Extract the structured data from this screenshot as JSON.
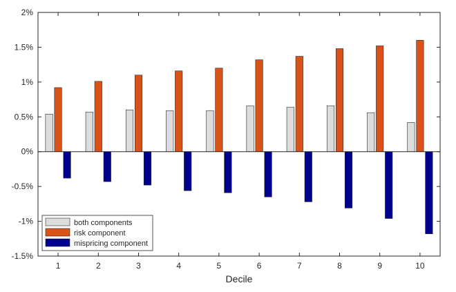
{
  "chart_data": {
    "type": "bar",
    "xlabel": "Decile",
    "ylabel": "",
    "categories": [
      "1",
      "2",
      "3",
      "4",
      "5",
      "6",
      "7",
      "8",
      "9",
      "10"
    ],
    "ylim": [
      -1.5,
      2
    ],
    "yticks": [
      {
        "value": 2,
        "label": "2%"
      },
      {
        "value": 1.5,
        "label": "1.5%"
      },
      {
        "value": 1,
        "label": "1%"
      },
      {
        "value": 0.5,
        "label": "0.5%"
      },
      {
        "value": 0,
        "label": "0%"
      },
      {
        "value": -0.5,
        "label": "-0.5%"
      },
      {
        "value": -1,
        "label": "-1%"
      },
      {
        "value": -1.5,
        "label": "-1.5%"
      }
    ],
    "grid": false,
    "legend_position": "bottom-left",
    "series": [
      {
        "name": "both components",
        "color": "#dcdcdc",
        "values": [
          0.54,
          0.57,
          0.6,
          0.59,
          0.59,
          0.66,
          0.64,
          0.66,
          0.56,
          0.42
        ]
      },
      {
        "name": "risk component",
        "color": "#d95319",
        "values": [
          0.92,
          1.01,
          1.1,
          1.16,
          1.2,
          1.32,
          1.37,
          1.48,
          1.52,
          1.6
        ]
      },
      {
        "name": "mispricing component",
        "color": "#00008f",
        "values": [
          -0.38,
          -0.43,
          -0.48,
          -0.56,
          -0.59,
          -0.65,
          -0.72,
          -0.81,
          -0.96,
          -1.18
        ]
      }
    ]
  }
}
